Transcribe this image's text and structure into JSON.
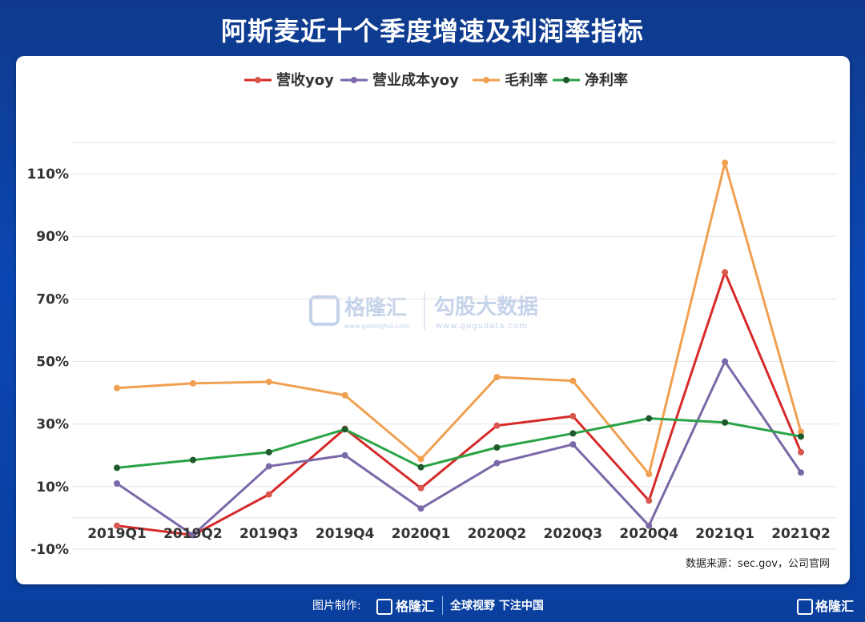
{
  "title": "阿斯麦近十个季度增速及利润率指标",
  "source_text": "数据来源：sec.gov，公司官网",
  "watermark": {
    "brand_left": "格隆汇",
    "brand_left_sub": "www.gelonghui.com",
    "brand_right": "勾股大数据",
    "brand_right_sub": "www.gogudata.com"
  },
  "footer": {
    "made_by": "图片制作:",
    "brand": "格隆汇",
    "slogan": "全球视野 下注中国",
    "corner_brand": "格隆汇"
  },
  "colors": {
    "background": "#0b47b3",
    "revenue_yoy": "#d62a2a",
    "cost_yoy": "#7b68a8",
    "gross_margin": "#f0a050",
    "net_margin": "#2aa347"
  },
  "chart_data": {
    "type": "line",
    "categories": [
      "2019Q1",
      "2019Q2",
      "2019Q3",
      "2019Q4",
      "2020Q1",
      "2020Q2",
      "2020Q3",
      "2020Q4",
      "2021Q1",
      "2021Q2"
    ],
    "series": [
      {
        "name": "营收yoy",
        "color": "#d62a2a",
        "marker": "#d9584d",
        "values": [
          -2.5,
          -5.5,
          7.5,
          28.5,
          9.5,
          29.5,
          32.5,
          5.5,
          78.5,
          21
        ]
      },
      {
        "name": "营业成本yoy",
        "color": "#7b68a8",
        "marker": "#7b68a8",
        "values": [
          11,
          -5.5,
          16.5,
          20,
          3,
          17.5,
          23.5,
          -2.5,
          50,
          14.5
        ]
      },
      {
        "name": "毛利率",
        "color": "#f0a050",
        "marker": "#f0a050",
        "values": [
          41.5,
          43,
          43.5,
          39.2,
          18.8,
          45,
          43.8,
          14,
          113.5,
          27.5
        ]
      },
      {
        "name": "净利率",
        "color": "#2aa347",
        "marker": "#1e5a2c",
        "values": [
          16,
          18.5,
          21,
          28.3,
          16.2,
          22.5,
          27,
          31.8,
          30.5,
          26
        ]
      }
    ],
    "y_ticks": [
      "-10%",
      "10%",
      "30%",
      "50%",
      "70%",
      "90%",
      "110%"
    ],
    "y_tick_values": [
      -10,
      10,
      30,
      50,
      70,
      90,
      110
    ],
    "ylim": [
      -10,
      120
    ],
    "grid": true,
    "legend_position": "top-center"
  }
}
